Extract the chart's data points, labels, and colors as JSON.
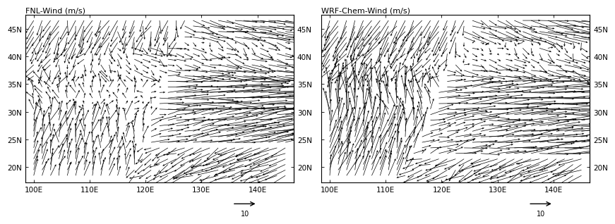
{
  "title_left": "FNL-Wind (m/s)",
  "title_right": "WRF-Chem-Wind (m/s)",
  "lon_min": 98.5,
  "lon_max": 146.5,
  "lat_min": 17.2,
  "lat_max": 47.5,
  "lon_ticks": [
    100,
    110,
    120,
    130,
    140
  ],
  "lat_ticks": [
    20,
    25,
    30,
    35,
    40,
    45
  ],
  "lon_labels": [
    "100E",
    "110E",
    "120E",
    "130E",
    "140E"
  ],
  "lat_labels_left": [
    "20N",
    "25N",
    "30N",
    "35N",
    "40N",
    "45N"
  ],
  "lat_labels_right": [
    "20N",
    "25N",
    "30N",
    "35N",
    "40N",
    "45N"
  ],
  "ref_arrow_u": 10,
  "ref_label": "10",
  "background_color": "#ffffff",
  "arrow_color": "#000000",
  "fig_bg": "#ffffff",
  "title_fontsize": 8,
  "tick_fontsize": 7.5
}
